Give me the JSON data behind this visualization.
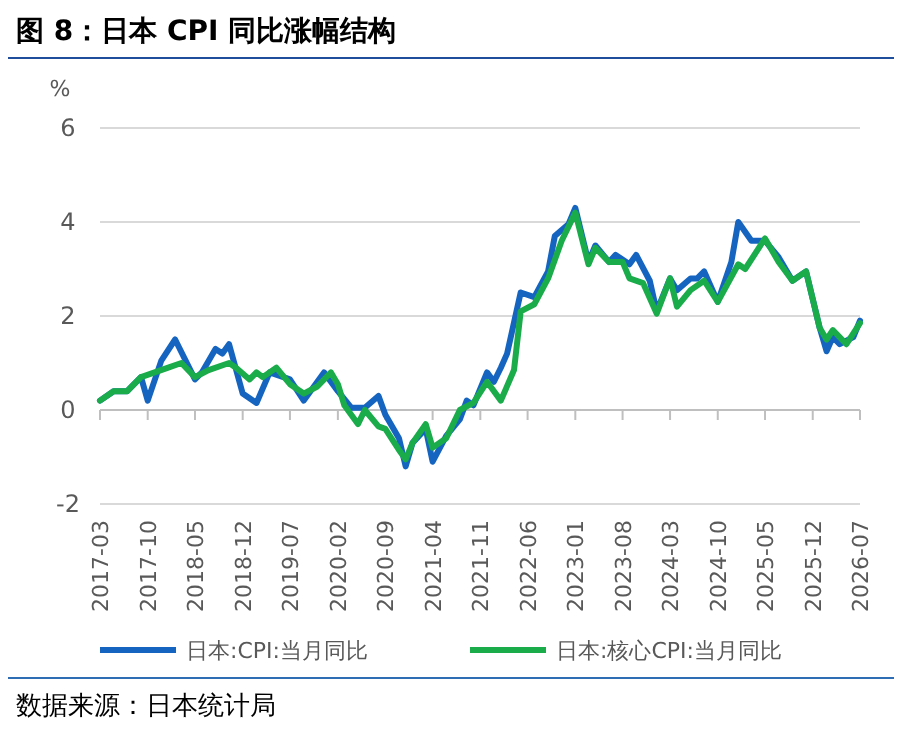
{
  "chart_data": {
    "type": "line",
    "title": "图 8：日本 CPI 同比涨幅结构",
    "ylabel": "%",
    "annotations": [
      "数据来源：日本统计局"
    ],
    "xlim": [
      "2017-03",
      "2026-07"
    ],
    "xticks": [
      "2017-03",
      "2017-10",
      "2018-05",
      "2018-12",
      "2019-07",
      "2020-02",
      "2020-09",
      "2021-04",
      "2021-11",
      "2022-06",
      "2023-01",
      "2023-08",
      "2024-03",
      "2024-10",
      "2025-05",
      "2025-12",
      "2026-07"
    ],
    "ylim": [
      -2,
      6
    ],
    "yticks": [
      -2,
      0,
      2,
      4,
      6
    ],
    "grid": "y",
    "legend": "bottom",
    "marker": "none",
    "line_style": "solid",
    "series": [
      {
        "name": "日本:CPI:当月同比",
        "color": "#1565c0",
        "x": [
          "2017-03",
          "2017-05",
          "2017-07",
          "2017-09",
          "2017-10",
          "2017-12",
          "2018-02",
          "2018-05",
          "2018-06",
          "2018-08",
          "2018-09",
          "2018-10",
          "2018-12",
          "2019-02",
          "2019-04",
          "2019-07",
          "2019-09",
          "2019-12",
          "2020-02",
          "2020-04",
          "2020-06",
          "2020-08",
          "2020-09",
          "2020-11",
          "2020-12",
          "2021-01",
          "2021-03",
          "2021-04",
          "2021-06",
          "2021-08",
          "2021-09",
          "2021-10",
          "2021-12",
          "2022-01",
          "2022-02",
          "2022-03",
          "2022-05",
          "2022-07",
          "2022-09",
          "2022-10",
          "2022-12",
          "2023-01",
          "2023-03",
          "2023-04",
          "2023-06",
          "2023-07",
          "2023-09",
          "2023-10",
          "2023-12",
          "2024-01",
          "2024-03",
          "2024-04",
          "2024-06",
          "2024-07",
          "2024-08",
          "2024-10",
          "2024-12",
          "2025-01",
          "2025-03",
          "2025-05",
          "2025-07",
          "2025-09",
          "2025-11",
          "2026-01",
          "2026-02",
          "2026-03",
          "2026-04",
          "2026-06",
          "2026-07"
        ],
        "values": [
          0.2,
          0.4,
          0.4,
          0.7,
          0.2,
          1.05,
          1.5,
          0.65,
          0.8,
          1.3,
          1.2,
          1.4,
          0.35,
          0.15,
          0.8,
          0.65,
          0.2,
          0.8,
          0.4,
          0.05,
          0.05,
          0.3,
          -0.1,
          -0.6,
          -1.2,
          -0.7,
          -0.4,
          -1.1,
          -0.55,
          -0.2,
          0.2,
          0.1,
          0.8,
          0.6,
          0.9,
          1.2,
          2.5,
          2.4,
          2.95,
          3.7,
          3.95,
          4.3,
          3.15,
          3.5,
          3.15,
          3.3,
          3.1,
          3.3,
          2.75,
          2.1,
          2.8,
          2.55,
          2.8,
          2.8,
          2.95,
          2.3,
          3.15,
          4.0,
          3.6,
          3.6,
          3.25,
          2.75,
          2.95,
          1.75,
          1.25,
          1.55,
          1.4,
          1.55,
          1.9
        ]
      },
      {
        "name": "日本:核心CPI:当月同比",
        "color": "#1aac4a",
        "x": [
          "2017-03",
          "2017-05",
          "2017-07",
          "2017-09",
          "2017-11",
          "2018-01",
          "2018-03",
          "2018-05",
          "2018-07",
          "2018-10",
          "2018-11",
          "2019-01",
          "2019-02",
          "2019-03",
          "2019-05",
          "2019-07",
          "2019-09",
          "2019-11",
          "2020-01",
          "2020-02",
          "2020-03",
          "2020-05",
          "2020-06",
          "2020-08",
          "2020-09",
          "2020-11",
          "2020-12",
          "2021-01",
          "2021-03",
          "2021-04",
          "2021-06",
          "2021-08",
          "2021-10",
          "2021-12",
          "2022-02",
          "2022-04",
          "2022-05",
          "2022-07",
          "2022-09",
          "2022-11",
          "2023-01",
          "2023-03",
          "2023-04",
          "2023-06",
          "2023-08",
          "2023-09",
          "2023-11",
          "2024-01",
          "2024-03",
          "2024-04",
          "2024-06",
          "2024-08",
          "2024-10",
          "2025-01",
          "2025-02",
          "2025-05",
          "2025-07",
          "2025-09",
          "2025-11",
          "2026-01",
          "2026-02",
          "2026-03",
          "2026-05",
          "2026-07"
        ],
        "values": [
          0.2,
          0.4,
          0.4,
          0.7,
          0.8,
          0.9,
          1.0,
          0.7,
          0.85,
          1.0,
          0.9,
          0.65,
          0.8,
          0.7,
          0.9,
          0.55,
          0.35,
          0.5,
          0.8,
          0.55,
          0.1,
          -0.3,
          0,
          -0.35,
          -0.4,
          -0.85,
          -1.05,
          -0.7,
          -0.3,
          -0.8,
          -0.6,
          0,
          0.15,
          0.6,
          0.2,
          0.85,
          2.1,
          2.25,
          2.8,
          3.6,
          4.2,
          3.1,
          3.45,
          3.15,
          3.15,
          2.8,
          2.7,
          2.05,
          2.8,
          2.2,
          2.55,
          2.75,
          2.3,
          3.1,
          3.0,
          3.65,
          3.15,
          2.75,
          2.95,
          1.75,
          1.5,
          1.7,
          1.4,
          1.85
        ]
      }
    ]
  }
}
